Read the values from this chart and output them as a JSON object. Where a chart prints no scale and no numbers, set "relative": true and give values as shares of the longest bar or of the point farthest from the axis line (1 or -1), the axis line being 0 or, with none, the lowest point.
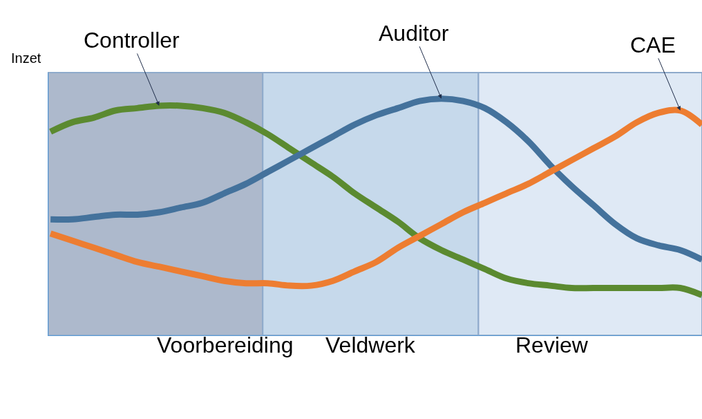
{
  "chart_data": {
    "type": "line",
    "relative": true,
    "ylabel": "Inzet",
    "legend": false,
    "grid": false,
    "categories": [
      null,
      null,
      null,
      null,
      null,
      null,
      null,
      null,
      null,
      null,
      null,
      null,
      null,
      null,
      null,
      null,
      null,
      null,
      null,
      null,
      null,
      null,
      null,
      null,
      null,
      null,
      null,
      null,
      null,
      null,
      null
    ],
    "series": [
      {
        "name": "Controller",
        "color": "#5b8a30",
        "values": [
          0.86,
          0.9,
          0.92,
          0.95,
          0.96,
          0.97,
          0.97,
          0.96,
          0.94,
          0.9,
          0.85,
          0.79,
          0.73,
          0.67,
          0.6,
          0.54,
          0.48,
          0.41,
          0.36,
          0.32,
          0.28,
          0.24,
          0.22,
          0.21,
          0.2,
          0.2,
          0.2,
          0.2,
          0.2,
          0.2,
          0.17
        ]
      },
      {
        "name": "Auditor",
        "color": "#44729c",
        "values": [
          0.49,
          0.49,
          0.5,
          0.51,
          0.51,
          0.52,
          0.54,
          0.56,
          0.6,
          0.64,
          0.69,
          0.74,
          0.79,
          0.84,
          0.89,
          0.93,
          0.96,
          0.99,
          1.0,
          0.99,
          0.96,
          0.9,
          0.82,
          0.72,
          0.63,
          0.55,
          0.47,
          0.41,
          0.38,
          0.36,
          0.32
        ]
      },
      {
        "name": "CAE",
        "color": "#ed7d31",
        "values": [
          0.43,
          0.4,
          0.37,
          0.34,
          0.31,
          0.29,
          0.27,
          0.25,
          0.23,
          0.22,
          0.22,
          0.21,
          0.21,
          0.23,
          0.27,
          0.31,
          0.37,
          0.42,
          0.47,
          0.52,
          0.56,
          0.6,
          0.64,
          0.69,
          0.74,
          0.79,
          0.84,
          0.9,
          0.94,
          0.95,
          0.89
        ]
      }
    ],
    "annotations": [
      "Voorbereiding",
      "Veldwerk",
      "Review"
    ]
  }
}
